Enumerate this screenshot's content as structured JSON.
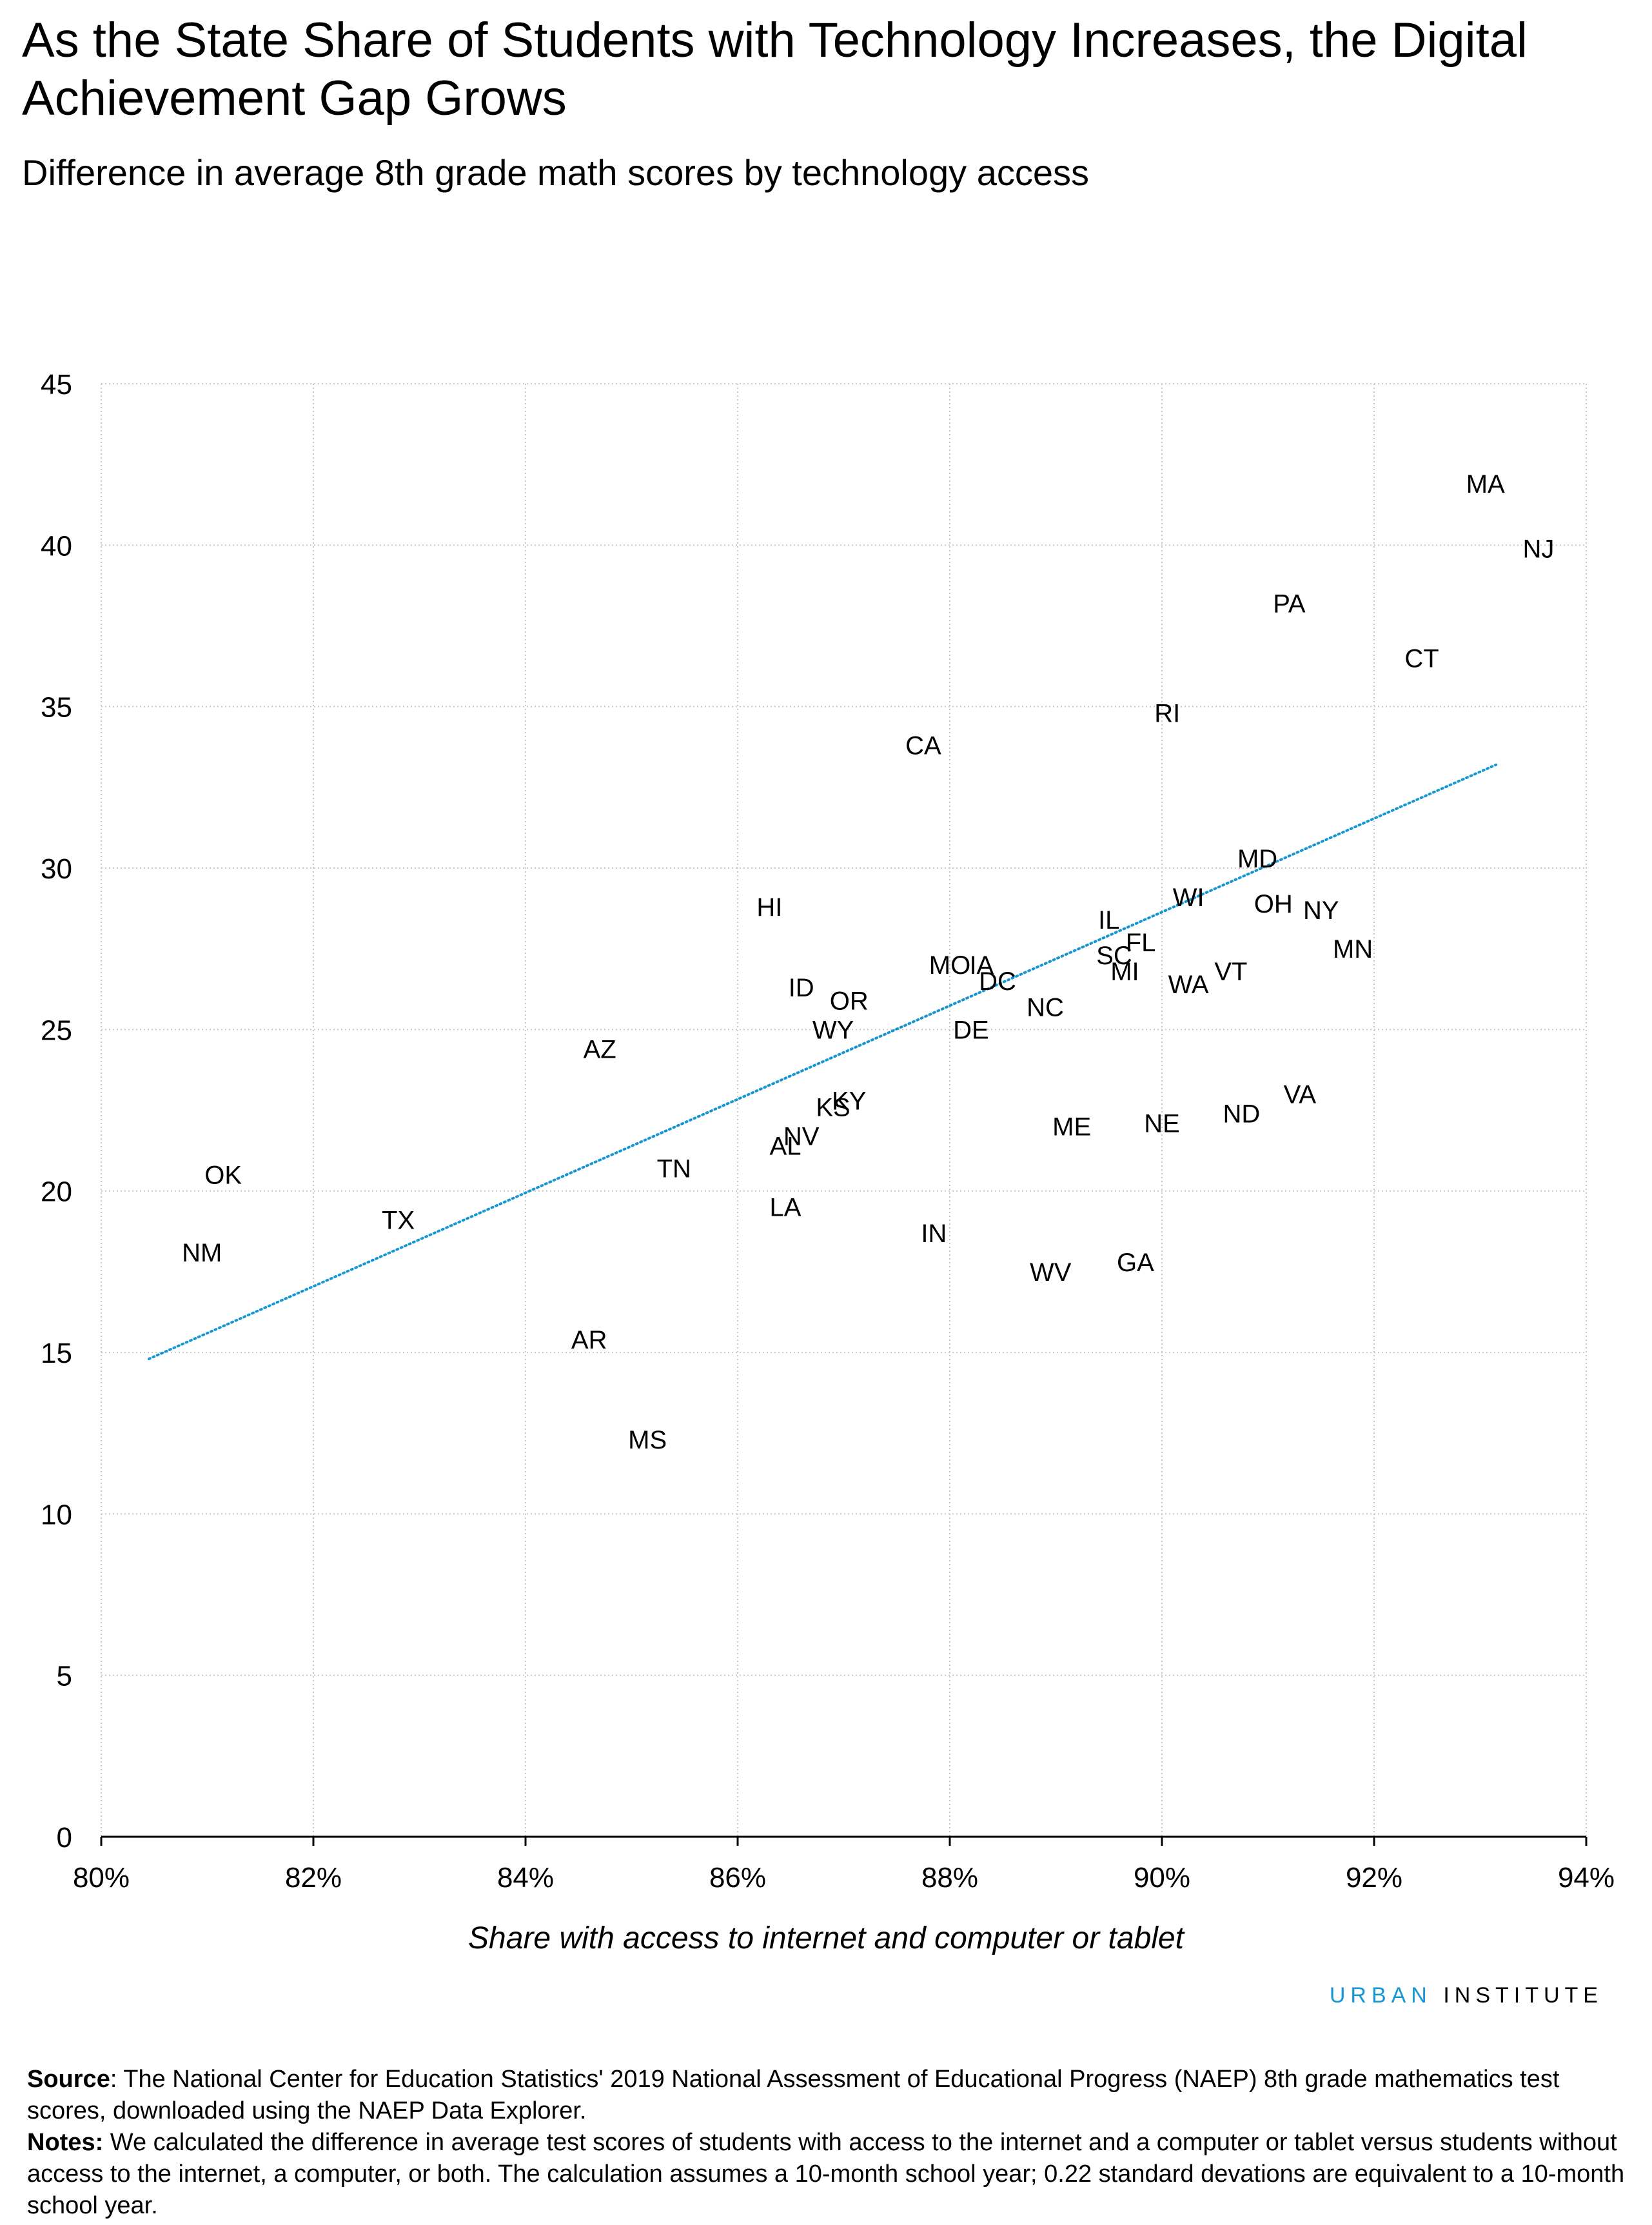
{
  "title": "As the State Share of Students with Technology Increases, the Digital Achievement Gap Grows",
  "subtitle": "Difference in average 8th grade math scores by technology access",
  "brand": {
    "part1": "URBAN",
    "part2": "INSTITUTE",
    "color": "#1696d2"
  },
  "footnote": {
    "source_label": "Source",
    "source_text": ": The National Center for Education Statistics' 2019 National Assessment of Educational Progress (NAEP) 8th grade mathematics test scores, downloaded using the NAEP Data Explorer.",
    "notes_label": "Notes:",
    "notes_text": " We calculated the difference in average test scores of students with access to the internet and a computer or tablet versus students without access to the internet, a computer, or both. The calculation assumes a 10-month school year; 0.22 standard devations are equivalent to a 10-month school year."
  },
  "chart_data": {
    "type": "scatter",
    "xlabel": "Share with access to internet and computer or tablet",
    "ylabel": "",
    "xlim": [
      80,
      94
    ],
    "ylim": [
      0,
      45
    ],
    "x_ticks": [
      "80%",
      "82%",
      "84%",
      "86%",
      "88%",
      "90%",
      "92%",
      "94%"
    ],
    "y_ticks": [
      "0",
      "5",
      "10",
      "15",
      "20",
      "25",
      "30",
      "35",
      "40",
      "45"
    ],
    "grid": true,
    "trendline": {
      "x": [
        80.45,
        93.15
      ],
      "y": [
        14.8,
        33.2
      ],
      "color": "#1696d2",
      "style": "dotted"
    },
    "points": [
      {
        "label": "NM",
        "x": 80.95,
        "y": 18.1
      },
      {
        "label": "OK",
        "x": 81.15,
        "y": 20.5
      },
      {
        "label": "TX",
        "x": 82.8,
        "y": 19.1
      },
      {
        "label": "AR",
        "x": 84.6,
        "y": 15.4
      },
      {
        "label": "AZ",
        "x": 84.7,
        "y": 24.4
      },
      {
        "label": "MS",
        "x": 85.15,
        "y": 12.3
      },
      {
        "label": "TN",
        "x": 85.4,
        "y": 20.7
      },
      {
        "label": "HI",
        "x": 86.3,
        "y": 28.8
      },
      {
        "label": "LA",
        "x": 86.45,
        "y": 19.5
      },
      {
        "label": "AL",
        "x": 86.45,
        "y": 21.4
      },
      {
        "label": "NV",
        "x": 86.6,
        "y": 21.7
      },
      {
        "label": "ID",
        "x": 86.6,
        "y": 26.3
      },
      {
        "label": "KS",
        "x": 86.9,
        "y": 22.6
      },
      {
        "label": "WY",
        "x": 86.9,
        "y": 25.0
      },
      {
        "label": "KY",
        "x": 87.05,
        "y": 22.8
      },
      {
        "label": "OR",
        "x": 87.05,
        "y": 25.9
      },
      {
        "label": "CA",
        "x": 87.75,
        "y": 33.8
      },
      {
        "label": "IN",
        "x": 87.85,
        "y": 18.7
      },
      {
        "label": "MO",
        "x": 88.0,
        "y": 27.0
      },
      {
        "label": "DE",
        "x": 88.2,
        "y": 25.0
      },
      {
        "label": "IA",
        "x": 88.3,
        "y": 27.0
      },
      {
        "label": "DC",
        "x": 88.45,
        "y": 26.5
      },
      {
        "label": "NC",
        "x": 88.9,
        "y": 25.7
      },
      {
        "label": "WV",
        "x": 88.95,
        "y": 17.5
      },
      {
        "label": "ME",
        "x": 89.15,
        "y": 22.0
      },
      {
        "label": "IL",
        "x": 89.5,
        "y": 28.4
      },
      {
        "label": "SC",
        "x": 89.55,
        "y": 27.3
      },
      {
        "label": "MI",
        "x": 89.65,
        "y": 26.8
      },
      {
        "label": "FL",
        "x": 89.8,
        "y": 27.7
      },
      {
        "label": "GA",
        "x": 89.75,
        "y": 17.8
      },
      {
        "label": "RI",
        "x": 90.05,
        "y": 34.8
      },
      {
        "label": "NE",
        "x": 90.0,
        "y": 22.1
      },
      {
        "label": "WI",
        "x": 90.25,
        "y": 29.1
      },
      {
        "label": "WA",
        "x": 90.25,
        "y": 26.4
      },
      {
        "label": "VT",
        "x": 90.65,
        "y": 26.8
      },
      {
        "label": "ND",
        "x": 90.75,
        "y": 22.4
      },
      {
        "label": "MD",
        "x": 90.9,
        "y": 30.3
      },
      {
        "label": "OH",
        "x": 91.05,
        "y": 28.9
      },
      {
        "label": "PA",
        "x": 91.2,
        "y": 38.2
      },
      {
        "label": "VA",
        "x": 91.3,
        "y": 23.0
      },
      {
        "label": "NY",
        "x": 91.5,
        "y": 28.7
      },
      {
        "label": "MN",
        "x": 91.8,
        "y": 27.5
      },
      {
        "label": "CT",
        "x": 92.45,
        "y": 36.5
      },
      {
        "label": "MA",
        "x": 93.05,
        "y": 41.9
      },
      {
        "label": "NJ",
        "x": 93.55,
        "y": 39.9
      }
    ]
  }
}
